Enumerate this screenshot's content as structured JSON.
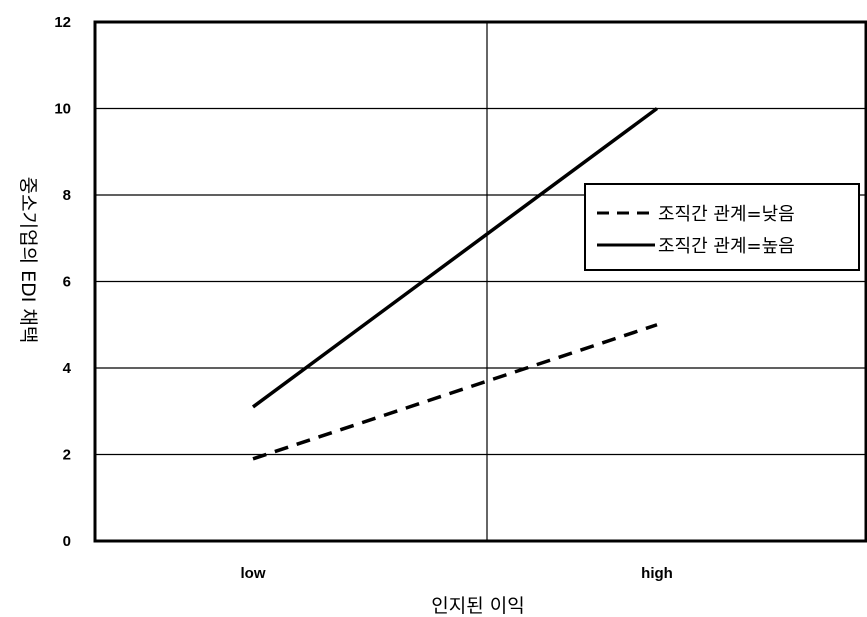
{
  "chart_data": {
    "type": "line",
    "title": "",
    "xlabel": "인지된 이익",
    "ylabel": "중소기업의 EDI 채택",
    "categories": [
      "low",
      "high"
    ],
    "ylim": [
      0,
      12
    ],
    "yticks": [
      0,
      2,
      4,
      6,
      8,
      10,
      12
    ],
    "grid": true,
    "legend_position": "right",
    "series": [
      {
        "name": "조직간 관계=낮음",
        "style": "dashed",
        "values": [
          1.9,
          5.0
        ]
      },
      {
        "name": "조직간 관계=높음",
        "style": "solid",
        "values": [
          3.1,
          10.0
        ]
      }
    ]
  }
}
